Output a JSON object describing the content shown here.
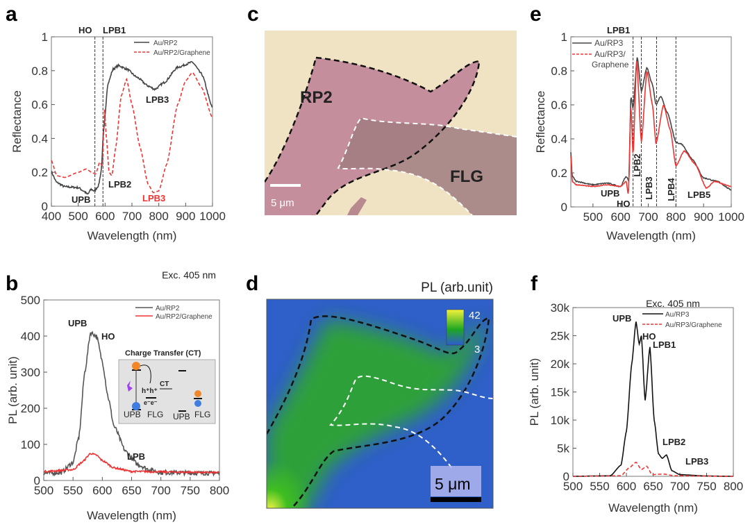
{
  "panels": {
    "a": "a",
    "b": "b",
    "c": "c",
    "d": "d",
    "e": "e",
    "f": "f"
  },
  "chart_data": [
    {
      "id": "a",
      "type": "line",
      "xlabel": "Wavelength (nm)",
      "ylabel": "Reflectance",
      "xlim": [
        400,
        1000
      ],
      "ylim": [
        0,
        1
      ],
      "xticks": [
        400,
        500,
        600,
        700,
        800,
        900,
        1000
      ],
      "yticks": [
        0,
        0.2,
        0.4,
        0.6,
        0.8,
        1
      ],
      "ytick_labels": [
        "0",
        "0.2",
        "0.4",
        "0.6",
        "0.8",
        "1"
      ],
      "vlines": [
        562,
        592
      ],
      "legend": [
        "Au/RP2",
        "Au/RP2/Graphene"
      ],
      "legend_placement": "top-right",
      "series": [
        {
          "name": "Au/RP2",
          "color": "#444444",
          "style": "solid",
          "points": [
            [
              400,
              0.2
            ],
            [
              420,
              0.14
            ],
            [
              450,
              0.115
            ],
            [
              500,
              0.11
            ],
            [
              520,
              0.09
            ],
            [
              535,
              0.07
            ],
            [
              548,
              0.1
            ],
            [
              560,
              0.09
            ],
            [
              575,
              0.12
            ],
            [
              585,
              0.2
            ],
            [
              595,
              0.45
            ],
            [
              610,
              0.72
            ],
            [
              630,
              0.81
            ],
            [
              650,
              0.83
            ],
            [
              680,
              0.81
            ],
            [
              720,
              0.76
            ],
            [
              760,
              0.71
            ],
            [
              785,
              0.69
            ],
            [
              820,
              0.73
            ],
            [
              870,
              0.82
            ],
            [
              925,
              0.85
            ],
            [
              960,
              0.78
            ],
            [
              1000,
              0.58
            ]
          ]
        },
        {
          "name": "Au/RP2/Graphene",
          "color": "#ee3333",
          "style": "dashed",
          "points": [
            [
              400,
              0.27
            ],
            [
              420,
              0.18
            ],
            [
              450,
              0.17
            ],
            [
              500,
              0.2
            ],
            [
              530,
              0.22
            ],
            [
              550,
              0.2
            ],
            [
              565,
              0.19
            ],
            [
              580,
              0.26
            ],
            [
              590,
              0.24
            ],
            [
              598,
              0.57
            ],
            [
              605,
              0.4
            ],
            [
              615,
              0.2
            ],
            [
              625,
              0.18
            ],
            [
              640,
              0.35
            ],
            [
              660,
              0.65
            ],
            [
              680,
              0.75
            ],
            [
              700,
              0.6
            ],
            [
              730,
              0.35
            ],
            [
              760,
              0.13
            ],
            [
              780,
              0.08
            ],
            [
              800,
              0.09
            ],
            [
              830,
              0.25
            ],
            [
              870,
              0.6
            ],
            [
              900,
              0.74
            ],
            [
              925,
              0.79
            ],
            [
              960,
              0.7
            ],
            [
              1000,
              0.52
            ]
          ]
        }
      ],
      "annotations": [
        {
          "text": "HO",
          "color": "#222222"
        },
        {
          "text": "LPB1",
          "color": "#222222"
        },
        {
          "text": "LPB3",
          "color": "#222222"
        },
        {
          "text": "LPB2",
          "color": "#222222"
        },
        {
          "text": "UPB",
          "color": "#222222"
        },
        {
          "text": "LPB3",
          "color": "#ee3333"
        }
      ]
    },
    {
      "id": "b",
      "type": "line",
      "xlabel": "Wavelength (nm)",
      "ylabel": "PL (arb. unit)",
      "xlim": [
        500,
        800
      ],
      "ylim": [
        0,
        500
      ],
      "xticks": [
        500,
        550,
        600,
        650,
        700,
        750,
        800
      ],
      "yticks": [
        0,
        100,
        200,
        300,
        400,
        500
      ],
      "ytick_labels": [
        "0",
        "100",
        "200",
        "300",
        "400",
        "500"
      ],
      "vlines": [],
      "title": "Exc. 405 nm",
      "legend": [
        "Au/RP2",
        "Au/RP2/Graphene"
      ],
      "legend_placement": "top-right",
      "series": [
        {
          "name": "Au/RP2",
          "color": "#555555",
          "style": "solid",
          "points": [
            [
              500,
              20
            ],
            [
              530,
              22
            ],
            [
              550,
              50
            ],
            [
              560,
              120
            ],
            [
              570,
              300
            ],
            [
              580,
              410
            ],
            [
              590,
              400
            ],
            [
              600,
              330
            ],
            [
              610,
              230
            ],
            [
              620,
              150
            ],
            [
              640,
              80
            ],
            [
              660,
              45
            ],
            [
              680,
              30
            ],
            [
              700,
              22
            ],
            [
              800,
              20
            ]
          ]
        },
        {
          "name": "Au/RP2/Graphene",
          "color": "#ee3333",
          "style": "solid",
          "points": [
            [
              500,
              25
            ],
            [
              550,
              30
            ],
            [
              565,
              50
            ],
            [
              580,
              75
            ],
            [
              590,
              70
            ],
            [
              600,
              55
            ],
            [
              620,
              35
            ],
            [
              650,
              25
            ],
            [
              800,
              22
            ]
          ]
        }
      ],
      "annotations": [
        {
          "text": "UPB",
          "color": "#222222"
        },
        {
          "text": "HO",
          "color": "#222222"
        },
        {
          "text": "LPB",
          "color": "#222222"
        }
      ],
      "inset": {
        "title": "Charge Transfer (CT)",
        "labels": [
          "UPB",
          "FLG",
          "UPB",
          "FLG"
        ],
        "ct": "CT",
        "holes": "h⁺h⁺",
        "electrons": "e⁻e⁻"
      }
    },
    {
      "id": "e",
      "type": "line",
      "xlabel": "Wavelength (nm)",
      "ylabel": "Reflectance",
      "xlim": [
        420,
        1000
      ],
      "ylim": [
        0,
        1
      ],
      "xticks": [
        500,
        600,
        700,
        800,
        900,
        1000
      ],
      "yticks": [
        0,
        0.2,
        0.4,
        0.6,
        0.8,
        1
      ],
      "ytick_labels": [
        "0",
        "0.2",
        "0.4",
        "0.6",
        "0.8",
        "1"
      ],
      "vlines": [
        645,
        675,
        730,
        800
      ],
      "legend": [
        "Au/RP3",
        "Au/RP3/",
        "Graphene"
      ],
      "legend_placement": "top-left",
      "series": [
        {
          "name": "Au/RP3",
          "color": "#444444",
          "style": "solid",
          "points": [
            [
              420,
              0.32
            ],
            [
              425,
              0.18
            ],
            [
              440,
              0.15
            ],
            [
              500,
              0.13
            ],
            [
              550,
              0.14
            ],
            [
              600,
              0.12
            ],
            [
              620,
              0.18
            ],
            [
              630,
              0.15
            ],
            [
              637,
              0.65
            ],
            [
              645,
              0.58
            ],
            [
              660,
              0.88
            ],
            [
              675,
              0.68
            ],
            [
              695,
              0.82
            ],
            [
              715,
              0.72
            ],
            [
              728,
              0.6
            ],
            [
              745,
              0.65
            ],
            [
              770,
              0.55
            ],
            [
              800,
              0.38
            ],
            [
              820,
              0.37
            ],
            [
              860,
              0.28
            ],
            [
              900,
              0.17
            ],
            [
              950,
              0.15
            ],
            [
              1000,
              0.1
            ]
          ]
        },
        {
          "name": "Au/RP3/Graphene",
          "color": "#ee3333",
          "style": "dashed",
          "points": [
            [
              420,
              0.3
            ],
            [
              425,
              0.15
            ],
            [
              440,
              0.13
            ],
            [
              500,
              0.12
            ],
            [
              550,
              0.13
            ],
            [
              600,
              0.12
            ],
            [
              620,
              0.15
            ],
            [
              628,
              0.07
            ],
            [
              637,
              0.6
            ],
            [
              645,
              0.3
            ],
            [
              658,
              0.86
            ],
            [
              675,
              0.38
            ],
            [
              695,
              0.8
            ],
            [
              715,
              0.6
            ],
            [
              728,
              0.37
            ],
            [
              755,
              0.6
            ],
            [
              780,
              0.45
            ],
            [
              800,
              0.24
            ],
            [
              830,
              0.33
            ],
            [
              870,
              0.25
            ],
            [
              910,
              0.11
            ],
            [
              940,
              0.15
            ],
            [
              1000,
              0.12
            ]
          ]
        }
      ],
      "annotations": [
        {
          "text": "LPB1",
          "color": "#222222"
        },
        {
          "text": "UPB",
          "color": "#222222"
        },
        {
          "text": "HO",
          "color": "#222222"
        },
        {
          "text": "LPB2",
          "color": "#222222"
        },
        {
          "text": "LPB3",
          "color": "#222222"
        },
        {
          "text": "LPB4",
          "color": "#222222"
        },
        {
          "text": "LPB5",
          "color": "#222222"
        }
      ]
    },
    {
      "id": "f",
      "type": "line",
      "xlabel": "Wavelength (nm)",
      "ylabel": "PL (arb. unit)",
      "xlim": [
        500,
        800
      ],
      "ylim": [
        0,
        30000
      ],
      "xticks": [
        500,
        550,
        600,
        650,
        700,
        750,
        800
      ],
      "yticks": [
        0,
        5000,
        10000,
        15000,
        20000,
        25000,
        30000
      ],
      "ytick_labels": [
        "0",
        "5k",
        "10k",
        "15k",
        "20k",
        "25k",
        "30k"
      ],
      "vlines": [],
      "title": "Exc. 405 nm",
      "legend": [
        "Au/RP3",
        "Au/RP3/Graphene"
      ],
      "legend_placement": "top-right",
      "series": [
        {
          "name": "Au/RP3",
          "color": "#111111",
          "style": "solid",
          "points": [
            [
              500,
              0
            ],
            [
              570,
              100
            ],
            [
              590,
              2000
            ],
            [
              600,
              8000
            ],
            [
              610,
              20000
            ],
            [
              618,
              27500
            ],
            [
              624,
              23500
            ],
            [
              628,
              25000
            ],
            [
              635,
              13500
            ],
            [
              644,
              23000
            ],
            [
              652,
              10000
            ],
            [
              660,
              4000
            ],
            [
              667,
              3200
            ],
            [
              675,
              3800
            ],
            [
              685,
              1000
            ],
            [
              700,
              300
            ],
            [
              750,
              50
            ],
            [
              800,
              0
            ]
          ]
        },
        {
          "name": "Au/RP3/Graphene",
          "color": "#ee3333",
          "style": "dashed",
          "points": [
            [
              500,
              0
            ],
            [
              590,
              100
            ],
            [
              605,
              1500
            ],
            [
              618,
              2500
            ],
            [
              628,
              1200
            ],
            [
              638,
              1800
            ],
            [
              648,
              300
            ],
            [
              670,
              400
            ],
            [
              690,
              100
            ],
            [
              800,
              0
            ]
          ]
        }
      ],
      "annotations": [
        {
          "text": "UPB",
          "color": "#222222"
        },
        {
          "text": "HO",
          "color": "#222222"
        },
        {
          "text": "LPB1",
          "color": "#222222"
        },
        {
          "text": "LPB2",
          "color": "#222222"
        },
        {
          "text": "LPB3",
          "color": "#222222"
        }
      ]
    }
  ],
  "micrograph": {
    "rp2": "RP2",
    "flg": "FLG",
    "scale": "5 μm",
    "flake_color": "#c48e9c",
    "background_color": "#efe3c4"
  },
  "pl_map": {
    "title": "PL (arb.unit)",
    "cbar_max": "42",
    "cbar_min": "3",
    "scale": "5 μm",
    "low_color": "#2d5bd0",
    "high_color": "#f0f030"
  }
}
